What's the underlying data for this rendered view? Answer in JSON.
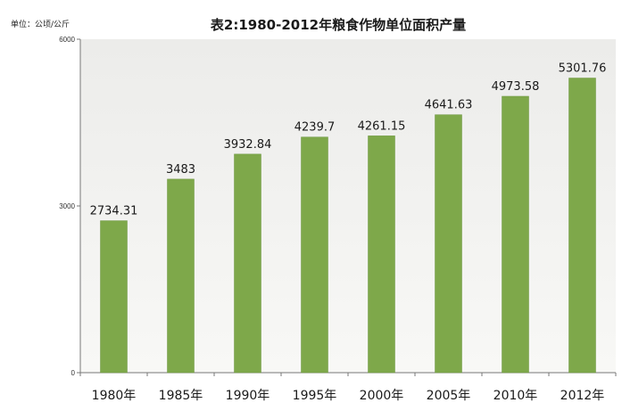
{
  "chart_data": {
    "type": "bar",
    "title": "表2:1980-2012年粮食作物单位面积产量",
    "unit_label": "单位：公顷/公斤",
    "categories": [
      "1980年",
      "1985年",
      "1990年",
      "1995年",
      "2000年",
      "2005年",
      "2010年",
      "2012年"
    ],
    "values": [
      2734.31,
      3483,
      3932.84,
      4239.7,
      4261.15,
      4641.63,
      4973.58,
      5301.76
    ],
    "value_labels": [
      "2734.31",
      "3483",
      "3932.84",
      "4239.7",
      "4261.15",
      "4641.63",
      "4973.58",
      "5301.76"
    ],
    "ylim": [
      0,
      6000
    ],
    "yticks": [
      0,
      3000,
      6000
    ],
    "ytick_labels": [
      "0",
      "3000",
      "6000"
    ],
    "grid": false,
    "colors": {
      "bar": "#7ea84a",
      "bar_edge": "#6d9640",
      "plot_bg_top": "#ececea",
      "plot_bg_bottom": "#f8f8f6",
      "axis": "#777777"
    }
  }
}
